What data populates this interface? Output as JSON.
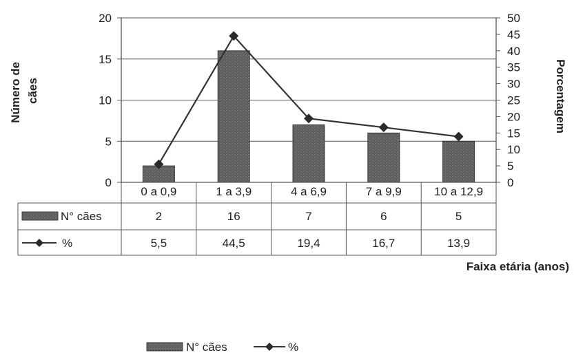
{
  "chart_data": {
    "type": "bar",
    "categories": [
      "0 a 0,9",
      "1 a 3,9",
      "4 a 6,9",
      "7 a 9,9",
      "10 a 12,9"
    ],
    "series": [
      {
        "name": "N° cães",
        "type": "bar",
        "axis": "left",
        "values": [
          2,
          16,
          7,
          6,
          5
        ],
        "labels": [
          "2",
          "16",
          "7",
          "6",
          "5"
        ]
      },
      {
        "name": "%",
        "type": "line",
        "axis": "right",
        "values": [
          5.5,
          44.5,
          19.4,
          16.7,
          13.9
        ],
        "labels": [
          "5,5",
          "44,5",
          "19,4",
          "16,7",
          "13,9"
        ]
      }
    ],
    "ylabel_left": "Número de cães",
    "ylabel_left_lines": [
      "Número de",
      "cães"
    ],
    "ylabel_right": "Porcentagem",
    "xlabel": "Faixa etária (anos)",
    "ylim_left": [
      0,
      20
    ],
    "yticks_left": [
      "0",
      "5",
      "10",
      "15",
      "20"
    ],
    "ylim_right": [
      0,
      50
    ],
    "yticks_right": [
      "0",
      "5",
      "10",
      "15",
      "20",
      "25",
      "30",
      "35",
      "40",
      "45",
      "50"
    ],
    "grid": true,
    "legend_placement": "bottom-center",
    "data_table": true
  },
  "colors": {
    "bar": "#5f5f5f",
    "line": "#333333",
    "grid": "#555555"
  }
}
